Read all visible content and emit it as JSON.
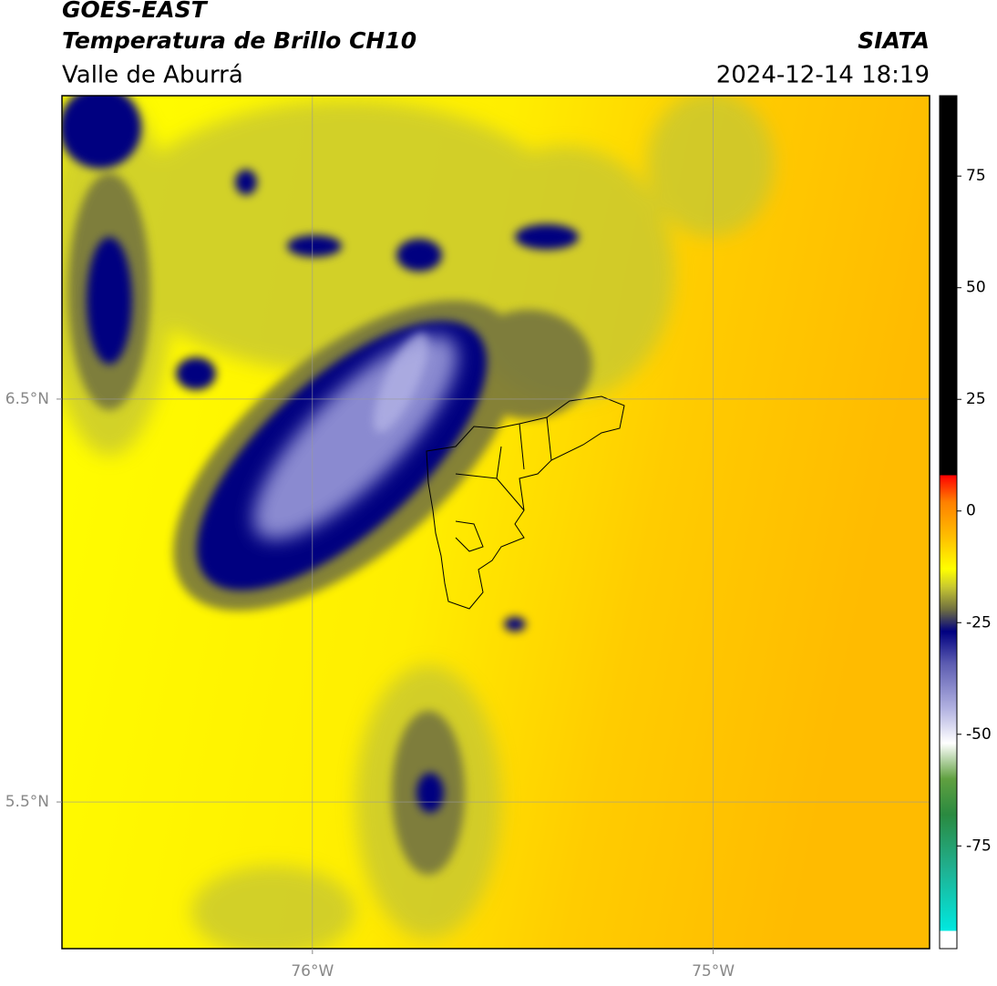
{
  "header": {
    "satellite": "GOES-EAST",
    "product": "Temperatura de Brillo CH10",
    "region": "Valle de Aburrá",
    "source": "SIATA",
    "datetime": "2024-12-14 18:19"
  },
  "map": {
    "lon_range": [
      -76.625,
      -74.46
    ],
    "lat_range": [
      5.136,
      7.253
    ],
    "lon_labels": [
      {
        "value": -76,
        "label": "76°W"
      },
      {
        "value": -75,
        "label": "75°W"
      }
    ],
    "lat_labels": [
      {
        "value": 6.5,
        "label": "6.5°N"
      },
      {
        "value": 5.5,
        "label": "5.5°N"
      }
    ]
  },
  "colorbar": {
    "range": [
      -98,
      93
    ],
    "ticks": [
      75,
      50,
      25,
      0,
      -25,
      -50,
      -75
    ],
    "stops": [
      {
        "value": -98,
        "color": "#ffffff"
      },
      {
        "value": -94,
        "color": "#ffffff"
      },
      {
        "value": -94,
        "color": "#00e8e0"
      },
      {
        "value": -80,
        "color": "#20b090"
      },
      {
        "value": -68,
        "color": "#2a8a40"
      },
      {
        "value": -60,
        "color": "#60a040"
      },
      {
        "value": -52,
        "color": "#ffffff"
      },
      {
        "value": -44,
        "color": "#b0b0e0"
      },
      {
        "value": -34,
        "color": "#5a5ab0"
      },
      {
        "value": -27,
        "color": "#000080"
      },
      {
        "value": -22,
        "color": "#707040"
      },
      {
        "value": -17,
        "color": "#c8c830"
      },
      {
        "value": -13,
        "color": "#ffff00"
      },
      {
        "value": -6,
        "color": "#ffc000"
      },
      {
        "value": 2,
        "color": "#ff8000"
      },
      {
        "value": 8,
        "color": "#ff0000"
      },
      {
        "value": 8,
        "color": "#000000"
      },
      {
        "value": 93,
        "color": "#000000"
      }
    ]
  }
}
